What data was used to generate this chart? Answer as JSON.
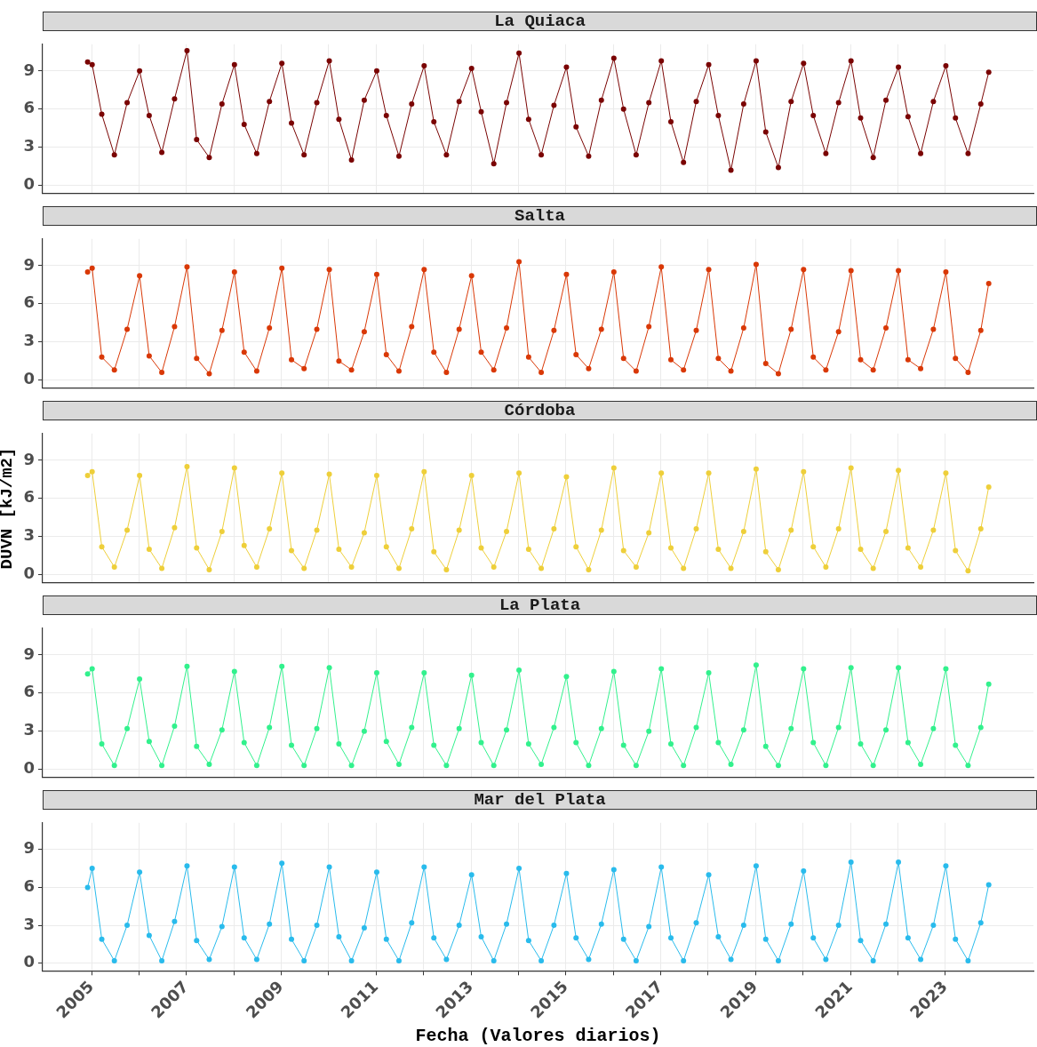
{
  "chart_data": [
    {
      "type": "line",
      "title": "La Quiaca",
      "tick_labels": "y",
      "grid": true,
      "legend": false,
      "marker": "circle",
      "line_style": "solid",
      "xlim": [
        "2003-12-20",
        "2024-11-10"
      ],
      "xticks": [
        "2005",
        "2006",
        "2007",
        "2008",
        "2009",
        "2010",
        "2011",
        "2012",
        "2013",
        "2014",
        "2015",
        "2016",
        "2017",
        "2018",
        "2019",
        "2020",
        "2021",
        "2022",
        "2023"
      ],
      "ylim": [
        -0.6,
        11.1
      ],
      "yticks": [
        0,
        3,
        6,
        9
      ],
      "x": [
        "2004-12-01",
        "2005-01-05",
        "2005-03-20",
        "2005-06-25",
        "2005-10-01",
        "2006-01-05",
        "2006-03-20",
        "2006-06-25",
        "2006-10-01",
        "2007-01-05",
        "2007-03-20",
        "2007-06-25",
        "2007-10-01",
        "2008-01-05",
        "2008-03-20",
        "2008-06-25",
        "2008-10-01",
        "2009-01-05",
        "2009-03-20",
        "2009-06-25",
        "2009-10-01",
        "2010-01-05",
        "2010-03-20",
        "2010-06-25",
        "2010-10-01",
        "2011-01-05",
        "2011-03-20",
        "2011-06-25",
        "2011-10-01",
        "2012-01-05",
        "2012-03-20",
        "2012-06-25",
        "2012-10-01",
        "2013-01-05",
        "2013-03-20",
        "2013-06-25",
        "2013-10-01",
        "2014-01-05",
        "2014-03-20",
        "2014-06-25",
        "2014-10-01",
        "2015-01-05",
        "2015-03-20",
        "2015-06-25",
        "2015-10-01",
        "2016-01-05",
        "2016-03-20",
        "2016-06-25",
        "2016-10-01",
        "2017-01-05",
        "2017-03-20",
        "2017-06-25",
        "2017-10-01",
        "2018-01-05",
        "2018-03-20",
        "2018-06-25",
        "2018-10-01",
        "2019-01-05",
        "2019-03-20",
        "2019-06-25",
        "2019-10-01",
        "2020-01-05",
        "2020-03-20",
        "2020-06-25",
        "2020-10-01",
        "2021-01-05",
        "2021-03-20",
        "2021-06-25",
        "2021-10-01",
        "2022-01-05",
        "2022-03-20",
        "2022-06-25",
        "2022-10-01",
        "2023-01-05",
        "2023-03-20",
        "2023-06-25",
        "2023-10-01",
        "2023-12-01"
      ],
      "series": [
        {
          "color": "#7a0403",
          "values": [
            9.7,
            9.5,
            5.6,
            2.4,
            6.5,
            9.0,
            5.5,
            2.6,
            6.8,
            10.6,
            3.6,
            2.2,
            6.4,
            9.5,
            4.8,
            2.5,
            6.6,
            9.6,
            4.9,
            2.4,
            6.5,
            9.8,
            5.2,
            2.0,
            6.7,
            9.0,
            5.5,
            2.3,
            6.4,
            9.4,
            5.0,
            2.4,
            6.6,
            9.2,
            5.8,
            1.7,
            6.5,
            10.4,
            5.2,
            2.4,
            6.3,
            9.3,
            4.6,
            2.3,
            6.7,
            10.0,
            6.0,
            2.4,
            6.5,
            9.8,
            5.0,
            1.8,
            6.6,
            9.5,
            5.5,
            1.2,
            6.4,
            9.8,
            4.2,
            1.4,
            6.6,
            9.6,
            5.5,
            2.5,
            6.5,
            9.8,
            5.3,
            2.2,
            6.7,
            9.3,
            5.4,
            2.5,
            6.6,
            9.4,
            5.3,
            2.5,
            6.4,
            8.9
          ]
        }
      ]
    },
    {
      "type": "line",
      "title": "Salta",
      "tick_labels": "y",
      "grid": true,
      "legend": false,
      "marker": "circle",
      "line_style": "solid",
      "xlim": [
        "2003-12-20",
        "2024-11-10"
      ],
      "xticks": [
        "2005",
        "2006",
        "2007",
        "2008",
        "2009",
        "2010",
        "2011",
        "2012",
        "2013",
        "2014",
        "2015",
        "2016",
        "2017",
        "2018",
        "2019",
        "2020",
        "2021",
        "2022",
        "2023"
      ],
      "ylim": [
        -0.6,
        11.1
      ],
      "yticks": [
        0,
        3,
        6,
        9
      ],
      "x": [
        "2004-12-01",
        "2005-01-05",
        "2005-03-20",
        "2005-06-25",
        "2005-10-01",
        "2006-01-05",
        "2006-03-20",
        "2006-06-25",
        "2006-10-01",
        "2007-01-05",
        "2007-03-20",
        "2007-06-25",
        "2007-10-01",
        "2008-01-05",
        "2008-03-20",
        "2008-06-25",
        "2008-10-01",
        "2009-01-05",
        "2009-03-20",
        "2009-06-25",
        "2009-10-01",
        "2010-01-05",
        "2010-03-20",
        "2010-06-25",
        "2010-10-01",
        "2011-01-05",
        "2011-03-20",
        "2011-06-25",
        "2011-10-01",
        "2012-01-05",
        "2012-03-20",
        "2012-06-25",
        "2012-10-01",
        "2013-01-05",
        "2013-03-20",
        "2013-06-25",
        "2013-10-01",
        "2014-01-05",
        "2014-03-20",
        "2014-06-25",
        "2014-10-01",
        "2015-01-05",
        "2015-03-20",
        "2015-06-25",
        "2015-10-01",
        "2016-01-05",
        "2016-03-20",
        "2016-06-25",
        "2016-10-01",
        "2017-01-05",
        "2017-03-20",
        "2017-06-25",
        "2017-10-01",
        "2018-01-05",
        "2018-03-20",
        "2018-06-25",
        "2018-10-01",
        "2019-01-05",
        "2019-03-20",
        "2019-06-25",
        "2019-10-01",
        "2020-01-05",
        "2020-03-20",
        "2020-06-25",
        "2020-10-01",
        "2021-01-05",
        "2021-03-20",
        "2021-06-25",
        "2021-10-01",
        "2022-01-05",
        "2022-03-20",
        "2022-06-25",
        "2022-10-01",
        "2023-01-05",
        "2023-03-20",
        "2023-06-25",
        "2023-10-01",
        "2023-12-01"
      ],
      "series": [
        {
          "color": "#d93806",
          "values": [
            8.5,
            8.8,
            1.8,
            0.8,
            4.0,
            8.2,
            1.9,
            0.6,
            4.2,
            8.9,
            1.7,
            0.5,
            3.9,
            8.5,
            2.2,
            0.7,
            4.1,
            8.8,
            1.6,
            0.9,
            4.0,
            8.7,
            1.5,
            0.8,
            3.8,
            8.3,
            2.0,
            0.7,
            4.2,
            8.7,
            2.2,
            0.6,
            4.0,
            8.2,
            2.2,
            0.8,
            4.1,
            9.3,
            1.8,
            0.6,
            3.9,
            8.3,
            2.0,
            0.9,
            4.0,
            8.5,
            1.7,
            0.7,
            4.2,
            8.9,
            1.6,
            0.8,
            3.9,
            8.7,
            1.7,
            0.7,
            4.1,
            9.1,
            1.3,
            0.5,
            4.0,
            8.7,
            1.8,
            0.8,
            3.8,
            8.6,
            1.6,
            0.8,
            4.1,
            8.6,
            1.6,
            0.9,
            4.0,
            8.5,
            1.7,
            0.6,
            3.9,
            7.6
          ]
        }
      ]
    },
    {
      "type": "line",
      "title": "Córdoba",
      "ylabel": "DUVN [kJ/m2]",
      "tick_labels": "y",
      "grid": true,
      "legend": false,
      "marker": "circle",
      "line_style": "solid",
      "xlim": [
        "2003-12-20",
        "2024-11-10"
      ],
      "xticks": [
        "2005",
        "2006",
        "2007",
        "2008",
        "2009",
        "2010",
        "2011",
        "2012",
        "2013",
        "2014",
        "2015",
        "2016",
        "2017",
        "2018",
        "2019",
        "2020",
        "2021",
        "2022",
        "2023"
      ],
      "ylim": [
        -0.6,
        11.1
      ],
      "yticks": [
        0,
        3,
        6,
        9
      ],
      "x": [
        "2004-12-01",
        "2005-01-05",
        "2005-03-20",
        "2005-06-25",
        "2005-10-01",
        "2006-01-05",
        "2006-03-20",
        "2006-06-25",
        "2006-10-01",
        "2007-01-05",
        "2007-03-20",
        "2007-06-25",
        "2007-10-01",
        "2008-01-05",
        "2008-03-20",
        "2008-06-25",
        "2008-10-01",
        "2009-01-05",
        "2009-03-20",
        "2009-06-25",
        "2009-10-01",
        "2010-01-05",
        "2010-03-20",
        "2010-06-25",
        "2010-10-01",
        "2011-01-05",
        "2011-03-20",
        "2011-06-25",
        "2011-10-01",
        "2012-01-05",
        "2012-03-20",
        "2012-06-25",
        "2012-10-01",
        "2013-01-05",
        "2013-03-20",
        "2013-06-25",
        "2013-10-01",
        "2014-01-05",
        "2014-03-20",
        "2014-06-25",
        "2014-10-01",
        "2015-01-05",
        "2015-03-20",
        "2015-06-25",
        "2015-10-01",
        "2016-01-05",
        "2016-03-20",
        "2016-06-25",
        "2016-10-01",
        "2017-01-05",
        "2017-03-20",
        "2017-06-25",
        "2017-10-01",
        "2018-01-05",
        "2018-03-20",
        "2018-06-25",
        "2018-10-01",
        "2019-01-05",
        "2019-03-20",
        "2019-06-25",
        "2019-10-01",
        "2020-01-05",
        "2020-03-20",
        "2020-06-25",
        "2020-10-01",
        "2021-01-05",
        "2021-03-20",
        "2021-06-25",
        "2021-10-01",
        "2022-01-05",
        "2022-03-20",
        "2022-06-25",
        "2022-10-01",
        "2023-01-05",
        "2023-03-20",
        "2023-06-25",
        "2023-10-01",
        "2023-12-01"
      ],
      "series": [
        {
          "color": "#eecf3a",
          "values": [
            7.8,
            8.1,
            2.2,
            0.6,
            3.5,
            7.8,
            2.0,
            0.5,
            3.7,
            8.5,
            2.1,
            0.4,
            3.4,
            8.4,
            2.3,
            0.6,
            3.6,
            8.0,
            1.9,
            0.5,
            3.5,
            7.9,
            2.0,
            0.6,
            3.3,
            7.8,
            2.2,
            0.5,
            3.6,
            8.1,
            1.8,
            0.4,
            3.5,
            7.8,
            2.1,
            0.6,
            3.4,
            8.0,
            2.0,
            0.5,
            3.6,
            7.7,
            2.2,
            0.4,
            3.5,
            8.4,
            1.9,
            0.6,
            3.3,
            8.0,
            2.1,
            0.5,
            3.6,
            8.0,
            2.0,
            0.5,
            3.4,
            8.3,
            1.8,
            0.4,
            3.5,
            8.1,
            2.2,
            0.6,
            3.6,
            8.4,
            2.0,
            0.5,
            3.4,
            8.2,
            2.1,
            0.6,
            3.5,
            8.0,
            1.9,
            0.3,
            3.6,
            6.9
          ]
        }
      ]
    },
    {
      "type": "line",
      "title": "La Plata",
      "tick_labels": "y",
      "grid": true,
      "legend": false,
      "marker": "circle",
      "line_style": "solid",
      "xlim": [
        "2003-12-20",
        "2024-11-10"
      ],
      "xticks": [
        "2005",
        "2006",
        "2007",
        "2008",
        "2009",
        "2010",
        "2011",
        "2012",
        "2013",
        "2014",
        "2015",
        "2016",
        "2017",
        "2018",
        "2019",
        "2020",
        "2021",
        "2022",
        "2023"
      ],
      "ylim": [
        -0.6,
        11.1
      ],
      "yticks": [
        0,
        3,
        6,
        9
      ],
      "x": [
        "2004-12-01",
        "2005-01-05",
        "2005-03-20",
        "2005-06-25",
        "2005-10-01",
        "2006-01-05",
        "2006-03-20",
        "2006-06-25",
        "2006-10-01",
        "2007-01-05",
        "2007-03-20",
        "2007-06-25",
        "2007-10-01",
        "2008-01-05",
        "2008-03-20",
        "2008-06-25",
        "2008-10-01",
        "2009-01-05",
        "2009-03-20",
        "2009-06-25",
        "2009-10-01",
        "2010-01-05",
        "2010-03-20",
        "2010-06-25",
        "2010-10-01",
        "2011-01-05",
        "2011-03-20",
        "2011-06-25",
        "2011-10-01",
        "2012-01-05",
        "2012-03-20",
        "2012-06-25",
        "2012-10-01",
        "2013-01-05",
        "2013-03-20",
        "2013-06-25",
        "2013-10-01",
        "2014-01-05",
        "2014-03-20",
        "2014-06-25",
        "2014-10-01",
        "2015-01-05",
        "2015-03-20",
        "2015-06-25",
        "2015-10-01",
        "2016-01-05",
        "2016-03-20",
        "2016-06-25",
        "2016-10-01",
        "2017-01-05",
        "2017-03-20",
        "2017-06-25",
        "2017-10-01",
        "2018-01-05",
        "2018-03-20",
        "2018-06-25",
        "2018-10-01",
        "2019-01-05",
        "2019-03-20",
        "2019-06-25",
        "2019-10-01",
        "2020-01-05",
        "2020-03-20",
        "2020-06-25",
        "2020-10-01",
        "2021-01-05",
        "2021-03-20",
        "2021-06-25",
        "2021-10-01",
        "2022-01-05",
        "2022-03-20",
        "2022-06-25",
        "2022-10-01",
        "2023-01-05",
        "2023-03-20",
        "2023-06-25",
        "2023-10-01",
        "2023-12-01"
      ],
      "series": [
        {
          "color": "#32f18d",
          "values": [
            7.5,
            7.9,
            2.0,
            0.3,
            3.2,
            7.1,
            2.2,
            0.3,
            3.4,
            8.1,
            1.8,
            0.4,
            3.1,
            7.7,
            2.1,
            0.3,
            3.3,
            8.1,
            1.9,
            0.3,
            3.2,
            8.0,
            2.0,
            0.3,
            3.0,
            7.6,
            2.2,
            0.4,
            3.3,
            7.6,
            1.9,
            0.3,
            3.2,
            7.4,
            2.1,
            0.3,
            3.1,
            7.8,
            2.0,
            0.4,
            3.3,
            7.3,
            2.1,
            0.3,
            3.2,
            7.7,
            1.9,
            0.3,
            3.0,
            7.9,
            2.0,
            0.3,
            3.3,
            7.6,
            2.1,
            0.4,
            3.1,
            8.2,
            1.8,
            0.3,
            3.2,
            7.9,
            2.1,
            0.3,
            3.3,
            8.0,
            2.0,
            0.3,
            3.1,
            8.0,
            2.1,
            0.4,
            3.2,
            7.9,
            1.9,
            0.3,
            3.3,
            6.7
          ]
        }
      ]
    },
    {
      "type": "line",
      "title": "Mar del Plata",
      "xlabel": "Fecha (Valores diarios)",
      "grid": true,
      "legend": false,
      "marker": "circle",
      "line_style": "solid",
      "xlim": [
        "2003-12-20",
        "2024-11-10"
      ],
      "xticks": [
        {
          "value": "2005",
          "label": "2005"
        },
        {
          "value": "2006",
          "label": null
        },
        {
          "value": "2007",
          "label": "2007"
        },
        {
          "value": "2008",
          "label": null
        },
        {
          "value": "2009",
          "label": "2009"
        },
        {
          "value": "2010",
          "label": null
        },
        {
          "value": "2011",
          "label": "2011"
        },
        {
          "value": "2012",
          "label": null
        },
        {
          "value": "2013",
          "label": "2013"
        },
        {
          "value": "2014",
          "label": null
        },
        {
          "value": "2015",
          "label": "2015"
        },
        {
          "value": "2016",
          "label": null
        },
        {
          "value": "2017",
          "label": "2017"
        },
        {
          "value": "2018",
          "label": null
        },
        {
          "value": "2019",
          "label": "2019"
        },
        {
          "value": "2020",
          "label": null
        },
        {
          "value": "2021",
          "label": "2021"
        },
        {
          "value": "2022",
          "label": null
        },
        {
          "value": "2023",
          "label": "2023"
        }
      ],
      "ylim": [
        -0.6,
        11.1
      ],
      "yticks": [
        0,
        3,
        6,
        9
      ],
      "x": [
        "2004-12-01",
        "2005-01-05",
        "2005-03-20",
        "2005-06-25",
        "2005-10-01",
        "2006-01-05",
        "2006-03-20",
        "2006-06-25",
        "2006-10-01",
        "2007-01-05",
        "2007-03-20",
        "2007-06-25",
        "2007-10-01",
        "2008-01-05",
        "2008-03-20",
        "2008-06-25",
        "2008-10-01",
        "2009-01-05",
        "2009-03-20",
        "2009-06-25",
        "2009-10-01",
        "2010-01-05",
        "2010-03-20",
        "2010-06-25",
        "2010-10-01",
        "2011-01-05",
        "2011-03-20",
        "2011-06-25",
        "2011-10-01",
        "2012-01-05",
        "2012-03-20",
        "2012-06-25",
        "2012-10-01",
        "2013-01-05",
        "2013-03-20",
        "2013-06-25",
        "2013-10-01",
        "2014-01-05",
        "2014-03-20",
        "2014-06-25",
        "2014-10-01",
        "2015-01-05",
        "2015-03-20",
        "2015-06-25",
        "2015-10-01",
        "2016-01-05",
        "2016-03-20",
        "2016-06-25",
        "2016-10-01",
        "2017-01-05",
        "2017-03-20",
        "2017-06-25",
        "2017-10-01",
        "2018-01-05",
        "2018-03-20",
        "2018-06-25",
        "2018-10-01",
        "2019-01-05",
        "2019-03-20",
        "2019-06-25",
        "2019-10-01",
        "2020-01-05",
        "2020-03-20",
        "2020-06-25",
        "2020-10-01",
        "2021-01-05",
        "2021-03-20",
        "2021-06-25",
        "2021-10-01",
        "2022-01-05",
        "2022-03-20",
        "2022-06-25",
        "2022-10-01",
        "2023-01-05",
        "2023-03-20",
        "2023-06-25",
        "2023-10-01",
        "2023-12-01"
      ],
      "series": [
        {
          "color": "#29bbec",
          "values": [
            6.0,
            7.5,
            1.9,
            0.2,
            3.0,
            7.2,
            2.2,
            0.2,
            3.3,
            7.7,
            1.8,
            0.3,
            2.9,
            7.6,
            2.0,
            0.3,
            3.1,
            7.9,
            1.9,
            0.2,
            3.0,
            7.6,
            2.1,
            0.2,
            2.8,
            7.2,
            1.9,
            0.2,
            3.2,
            7.6,
            2.0,
            0.3,
            3.0,
            7.0,
            2.1,
            0.2,
            3.1,
            7.5,
            1.8,
            0.2,
            3.0,
            7.1,
            2.0,
            0.3,
            3.1,
            7.4,
            1.9,
            0.2,
            2.9,
            7.6,
            2.0,
            0.2,
            3.2,
            7.0,
            2.1,
            0.3,
            3.0,
            7.7,
            1.9,
            0.2,
            3.1,
            7.3,
            2.0,
            0.3,
            3.0,
            8.0,
            1.8,
            0.2,
            3.1,
            8.0,
            2.0,
            0.3,
            3.0,
            7.7,
            1.9,
            0.2,
            3.2,
            6.2
          ]
        }
      ]
    }
  ]
}
